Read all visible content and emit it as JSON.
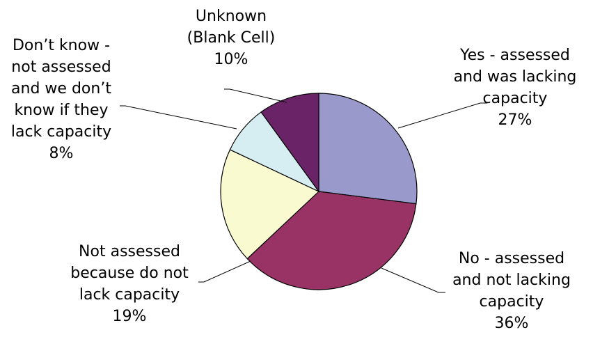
{
  "chart_data": {
    "type": "pie",
    "title": "",
    "slices": [
      {
        "label": [
          "Yes - assessed",
          "and was lacking",
          "capacity"
        ],
        "percent_label": "27%",
        "value": 27,
        "color": "#9999cc"
      },
      {
        "label": [
          "No - assessed",
          "and not lacking",
          "capacity"
        ],
        "percent_label": "36%",
        "value": 36,
        "color": "#993366"
      },
      {
        "label": [
          "Not assessed",
          "because do not",
          "lack capacity"
        ],
        "percent_label": "19%",
        "value": 19,
        "color": "#fafad0"
      },
      {
        "label": [
          "Don’t know -",
          "not assessed",
          "and we don’t",
          "know if they",
          "lack capacity"
        ],
        "percent_label": "8%",
        "value": 8,
        "color": "#d6eef2"
      },
      {
        "label": [
          "Unknown",
          "(Blank Cell)"
        ],
        "percent_label": "10%",
        "value": 10,
        "color": "#6a2366"
      }
    ],
    "start_angle": "12 o'clock",
    "direction": "clockwise",
    "legend": "none (leader-line labels)"
  }
}
